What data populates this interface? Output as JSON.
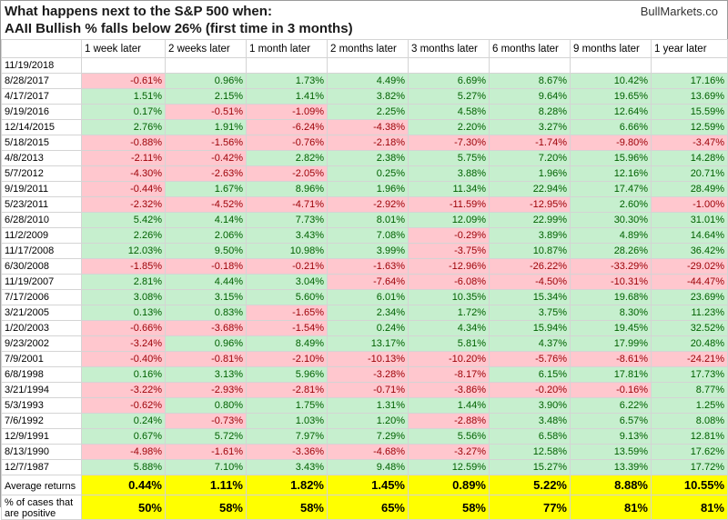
{
  "header": {
    "title_line1": "What happens next to the S&P 500 when:",
    "title_line2": "AAII Bullish % falls below 26% (first time in 3 months)",
    "brand": "BullMarkets.co"
  },
  "columns": [
    "",
    "1 week later",
    "2 weeks later",
    "1 month later",
    "2 months later",
    "3 months later",
    "6 months later",
    "9 months later",
    "1 year later"
  ],
  "rows": [
    {
      "date": "11/19/2018",
      "values": [
        "",
        "",
        "",
        "",
        "",
        "",
        "",
        ""
      ]
    },
    {
      "date": "8/28/2017",
      "values": [
        "-0.61%",
        "0.96%",
        "1.73%",
        "4.49%",
        "6.69%",
        "8.67%",
        "10.42%",
        "17.16%"
      ]
    },
    {
      "date": "4/17/2017",
      "values": [
        "1.51%",
        "2.15%",
        "1.41%",
        "3.82%",
        "5.27%",
        "9.64%",
        "19.65%",
        "13.69%"
      ]
    },
    {
      "date": "9/19/2016",
      "values": [
        "0.17%",
        "-0.51%",
        "-1.09%",
        "2.25%",
        "4.58%",
        "8.28%",
        "12.64%",
        "15.59%"
      ]
    },
    {
      "date": "12/14/2015",
      "values": [
        "2.76%",
        "1.91%",
        "-6.24%",
        "-4.38%",
        "2.20%",
        "3.27%",
        "6.66%",
        "12.59%"
      ]
    },
    {
      "date": "5/18/2015",
      "values": [
        "-0.88%",
        "-1.56%",
        "-0.76%",
        "-2.18%",
        "-7.30%",
        "-1.74%",
        "-9.80%",
        "-3.47%"
      ]
    },
    {
      "date": "4/8/2013",
      "values": [
        "-2.11%",
        "-0.42%",
        "2.82%",
        "2.38%",
        "5.75%",
        "7.20%",
        "15.96%",
        "14.28%"
      ]
    },
    {
      "date": "5/7/2012",
      "values": [
        "-4.30%",
        "-2.63%",
        "-2.05%",
        "0.25%",
        "3.88%",
        "1.96%",
        "12.16%",
        "20.71%"
      ]
    },
    {
      "date": "9/19/2011",
      "values": [
        "-0.44%",
        "1.67%",
        "8.96%",
        "1.96%",
        "11.34%",
        "22.94%",
        "17.47%",
        "28.49%"
      ]
    },
    {
      "date": "5/23/2011",
      "values": [
        "-2.32%",
        "-4.52%",
        "-4.71%",
        "-2.92%",
        "-11.59%",
        "-12.95%",
        "2.60%",
        "-1.00%"
      ]
    },
    {
      "date": "6/28/2010",
      "values": [
        "5.42%",
        "4.14%",
        "7.73%",
        "8.01%",
        "12.09%",
        "22.99%",
        "30.30%",
        "31.01%"
      ]
    },
    {
      "date": "11/2/2009",
      "values": [
        "2.26%",
        "2.06%",
        "3.43%",
        "7.08%",
        "-0.29%",
        "3.89%",
        "4.89%",
        "14.64%"
      ]
    },
    {
      "date": "11/17/2008",
      "values": [
        "12.03%",
        "9.50%",
        "10.98%",
        "3.99%",
        "-3.75%",
        "10.87%",
        "28.26%",
        "36.42%"
      ]
    },
    {
      "date": "6/30/2008",
      "values": [
        "-1.85%",
        "-0.18%",
        "-0.21%",
        "-1.63%",
        "-12.96%",
        "-26.22%",
        "-33.29%",
        "-29.02%"
      ]
    },
    {
      "date": "11/19/2007",
      "values": [
        "2.81%",
        "4.44%",
        "3.04%",
        "-7.64%",
        "-6.08%",
        "-4.50%",
        "-10.31%",
        "-44.47%"
      ]
    },
    {
      "date": "7/17/2006",
      "values": [
        "3.08%",
        "3.15%",
        "5.60%",
        "6.01%",
        "10.35%",
        "15.34%",
        "19.68%",
        "23.69%"
      ]
    },
    {
      "date": "3/21/2005",
      "values": [
        "0.13%",
        "0.83%",
        "-1.65%",
        "2.34%",
        "1.72%",
        "3.75%",
        "8.30%",
        "11.23%"
      ]
    },
    {
      "date": "1/20/2003",
      "values": [
        "-0.66%",
        "-3.68%",
        "-1.54%",
        "0.24%",
        "4.34%",
        "15.94%",
        "19.45%",
        "32.52%"
      ]
    },
    {
      "date": "9/23/2002",
      "values": [
        "-3.24%",
        "0.96%",
        "8.49%",
        "13.17%",
        "5.81%",
        "4.37%",
        "17.99%",
        "20.48%"
      ]
    },
    {
      "date": "7/9/2001",
      "values": [
        "-0.40%",
        "-0.81%",
        "-2.10%",
        "-10.13%",
        "-10.20%",
        "-5.76%",
        "-8.61%",
        "-24.21%"
      ]
    },
    {
      "date": "6/8/1998",
      "values": [
        "0.16%",
        "3.13%",
        "5.96%",
        "-3.28%",
        "-8.17%",
        "6.15%",
        "17.81%",
        "17.73%"
      ]
    },
    {
      "date": "3/21/1994",
      "values": [
        "-3.22%",
        "-2.93%",
        "-2.81%",
        "-0.71%",
        "-3.86%",
        "-0.20%",
        "-0.16%",
        "8.77%"
      ]
    },
    {
      "date": "5/3/1993",
      "values": [
        "-0.62%",
        "0.80%",
        "1.75%",
        "1.31%",
        "1.44%",
        "3.90%",
        "6.22%",
        "1.25%"
      ]
    },
    {
      "date": "7/6/1992",
      "values": [
        "0.24%",
        "-0.73%",
        "1.03%",
        "1.20%",
        "-2.88%",
        "3.48%",
        "6.57%",
        "8.08%"
      ]
    },
    {
      "date": "12/9/1991",
      "values": [
        "0.67%",
        "5.72%",
        "7.97%",
        "7.29%",
        "5.56%",
        "6.58%",
        "9.13%",
        "12.81%"
      ]
    },
    {
      "date": "8/13/1990",
      "values": [
        "-4.98%",
        "-1.61%",
        "-3.36%",
        "-4.68%",
        "-3.27%",
        "12.58%",
        "13.59%",
        "17.62%"
      ]
    },
    {
      "date": "12/7/1987",
      "values": [
        "5.88%",
        "7.10%",
        "3.43%",
        "9.48%",
        "12.59%",
        "15.27%",
        "13.39%",
        "17.72%"
      ]
    }
  ],
  "summary": [
    {
      "label": "Average returns",
      "values": [
        "0.44%",
        "1.11%",
        "1.82%",
        "1.45%",
        "0.89%",
        "5.22%",
        "8.88%",
        "10.55%"
      ]
    },
    {
      "label": "% of cases that are positive",
      "values": [
        "50%",
        "58%",
        "58%",
        "65%",
        "58%",
        "77%",
        "81%",
        "81%"
      ]
    }
  ],
  "colors": {
    "positive_fill": "#c6efce",
    "positive_text": "#006100",
    "negative_fill": "#ffc7ce",
    "negative_text": "#9c0006",
    "summary_fill": "#ffff00"
  }
}
